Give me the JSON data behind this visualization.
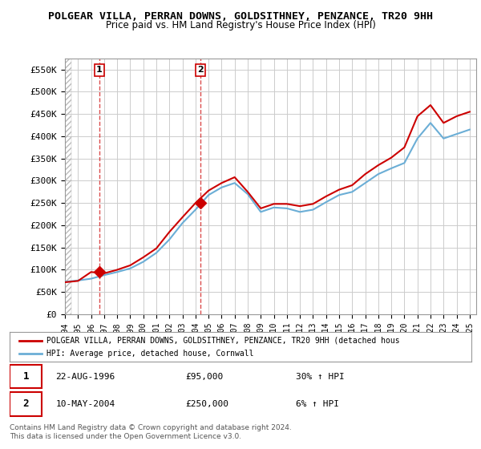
{
  "title": "POLGEAR VILLA, PERRAN DOWNS, GOLDSITHNEY, PENZANCE, TR20 9HH",
  "subtitle": "Price paid vs. HM Land Registry's House Price Index (HPI)",
  "ylabel_ticks": [
    "£0",
    "£50K",
    "£100K",
    "£150K",
    "£200K",
    "£250K",
    "£300K",
    "£350K",
    "£400K",
    "£450K",
    "£500K",
    "£550K"
  ],
  "ytick_values": [
    0,
    50000,
    100000,
    150000,
    200000,
    250000,
    300000,
    350000,
    400000,
    450000,
    500000,
    550000
  ],
  "ylim": [
    0,
    575000
  ],
  "xlim_start": 1994.0,
  "xlim_end": 2025.5,
  "xticks": [
    1994,
    1995,
    1996,
    1997,
    1998,
    1999,
    2000,
    2001,
    2002,
    2003,
    2004,
    2005,
    2006,
    2007,
    2008,
    2009,
    2010,
    2011,
    2012,
    2013,
    2014,
    2015,
    2016,
    2017,
    2018,
    2019,
    2020,
    2021,
    2022,
    2023,
    2024,
    2025
  ],
  "sale1_date": 1996.64,
  "sale1_price": 95000,
  "sale1_label": "1",
  "sale1_text": "22-AUG-1996",
  "sale1_amount": "£95,000",
  "sale1_hpi": "30% ↑ HPI",
  "sale2_date": 2004.36,
  "sale2_price": 250000,
  "sale2_label": "2",
  "sale2_text": "10-MAY-2004",
  "sale2_amount": "£250,000",
  "sale2_hpi": "6% ↑ HPI",
  "hpi_line_color": "#6baed6",
  "price_line_color": "#cc0000",
  "sale_marker_color": "#cc0000",
  "sale_marker_bg": "#cc3333",
  "grid_color": "#cccccc",
  "bg_color": "#ffffff",
  "legend_label_red": "POLGEAR VILLA, PERRAN DOWNS, GOLDSITHNEY, PENZANCE, TR20 9HH (detached hous",
  "legend_label_blue": "HPI: Average price, detached house, Cornwall",
  "footer": "Contains HM Land Registry data © Crown copyright and database right 2024.\nThis data is licensed under the Open Government Licence v3.0.",
  "hpi_data_years": [
    1994,
    1995,
    1996,
    1997,
    1998,
    1999,
    2000,
    2001,
    2002,
    2003,
    2004,
    2005,
    2006,
    2007,
    2008,
    2009,
    2010,
    2011,
    2012,
    2013,
    2014,
    2015,
    2016,
    2017,
    2018,
    2019,
    2020,
    2021,
    2022,
    2023,
    2024,
    2025
  ],
  "hpi_values": [
    73000,
    76000,
    80000,
    88000,
    95000,
    103000,
    118000,
    138000,
    168000,
    205000,
    235000,
    268000,
    285000,
    295000,
    270000,
    230000,
    240000,
    238000,
    230000,
    235000,
    252000,
    268000,
    275000,
    295000,
    315000,
    328000,
    340000,
    395000,
    430000,
    395000,
    405000,
    415000
  ],
  "price_data_years": [
    1994,
    1995,
    1996,
    1997,
    1998,
    1999,
    2000,
    2001,
    2002,
    2003,
    2004,
    2005,
    2006,
    2007,
    2008,
    2009,
    2010,
    2011,
    2012,
    2013,
    2014,
    2015,
    2016,
    2017,
    2018,
    2019,
    2020,
    2021,
    2022,
    2023,
    2024,
    2025
  ],
  "price_values": [
    72000,
    75000,
    95000,
    92000,
    100000,
    110000,
    128000,
    148000,
    185000,
    218000,
    250000,
    278000,
    295000,
    308000,
    275000,
    238000,
    248000,
    248000,
    243000,
    248000,
    265000,
    280000,
    290000,
    315000,
    335000,
    352000,
    375000,
    445000,
    470000,
    430000,
    445000,
    455000
  ]
}
